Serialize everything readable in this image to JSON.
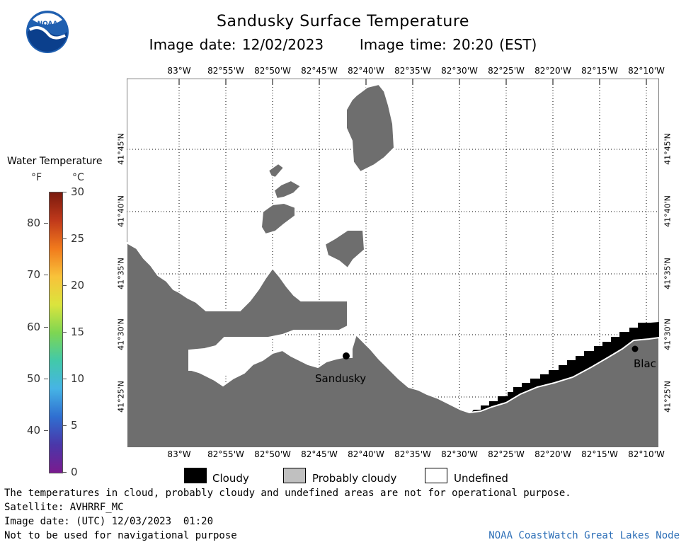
{
  "title": "Sandusky Surface Temperature",
  "image_date_label": "Image date:",
  "image_date": "12/02/2023",
  "image_time_label": "Image time:",
  "image_time": "20:20 (EST)",
  "logo_text": "NOAA",
  "colorbar": {
    "title": "Water Temperature",
    "unit_f": "°F",
    "unit_c": "°C",
    "f_ticks": [
      "80",
      "70",
      "60",
      "50",
      "40"
    ],
    "c_ticks": [
      "30",
      "25",
      "20",
      "15",
      "10",
      "5",
      "0"
    ],
    "colors": [
      "#7a1a0e",
      "#c0391b",
      "#f17a1c",
      "#f8c23a",
      "#dbe43d",
      "#7ed652",
      "#42c9a9",
      "#46b4e5",
      "#2f6fd1",
      "#4a37a9",
      "#7a1b8f"
    ]
  },
  "map": {
    "lon_labels": [
      "83°W",
      "82°55'W",
      "82°50'W",
      "82°45'W",
      "82°40'W",
      "82°35'W",
      "82°30'W",
      "82°25'W",
      "82°20'W",
      "82°15'W",
      "82°10'W"
    ],
    "lat_labels": [
      "41°45'N",
      "41°40'N",
      "41°35'N",
      "41°30'N",
      "41°25'N"
    ],
    "places": [
      {
        "name": "Sandusky"
      },
      {
        "name": "Blac"
      }
    ],
    "colors": {
      "land": "#6e6e6e",
      "cloudy": "#000000",
      "probably_cloudy": "#c0c0c0",
      "undefined": "#ffffff"
    }
  },
  "legend": {
    "cloudy": "Cloudy",
    "probably_cloudy": "Probably cloudy",
    "undefined": "Undefined"
  },
  "footer": {
    "disclaimer": "The temperatures in cloud, probably cloudy and undefined areas are not for operational purpose.",
    "satellite": "Satellite: AVHRRF_MC",
    "image_date_utc": "Image date: (UTC) 12/03/2023  01:20",
    "nav_warning": "Not to be used for navigational purpose",
    "credit": "NOAA CoastWatch Great Lakes Node"
  }
}
